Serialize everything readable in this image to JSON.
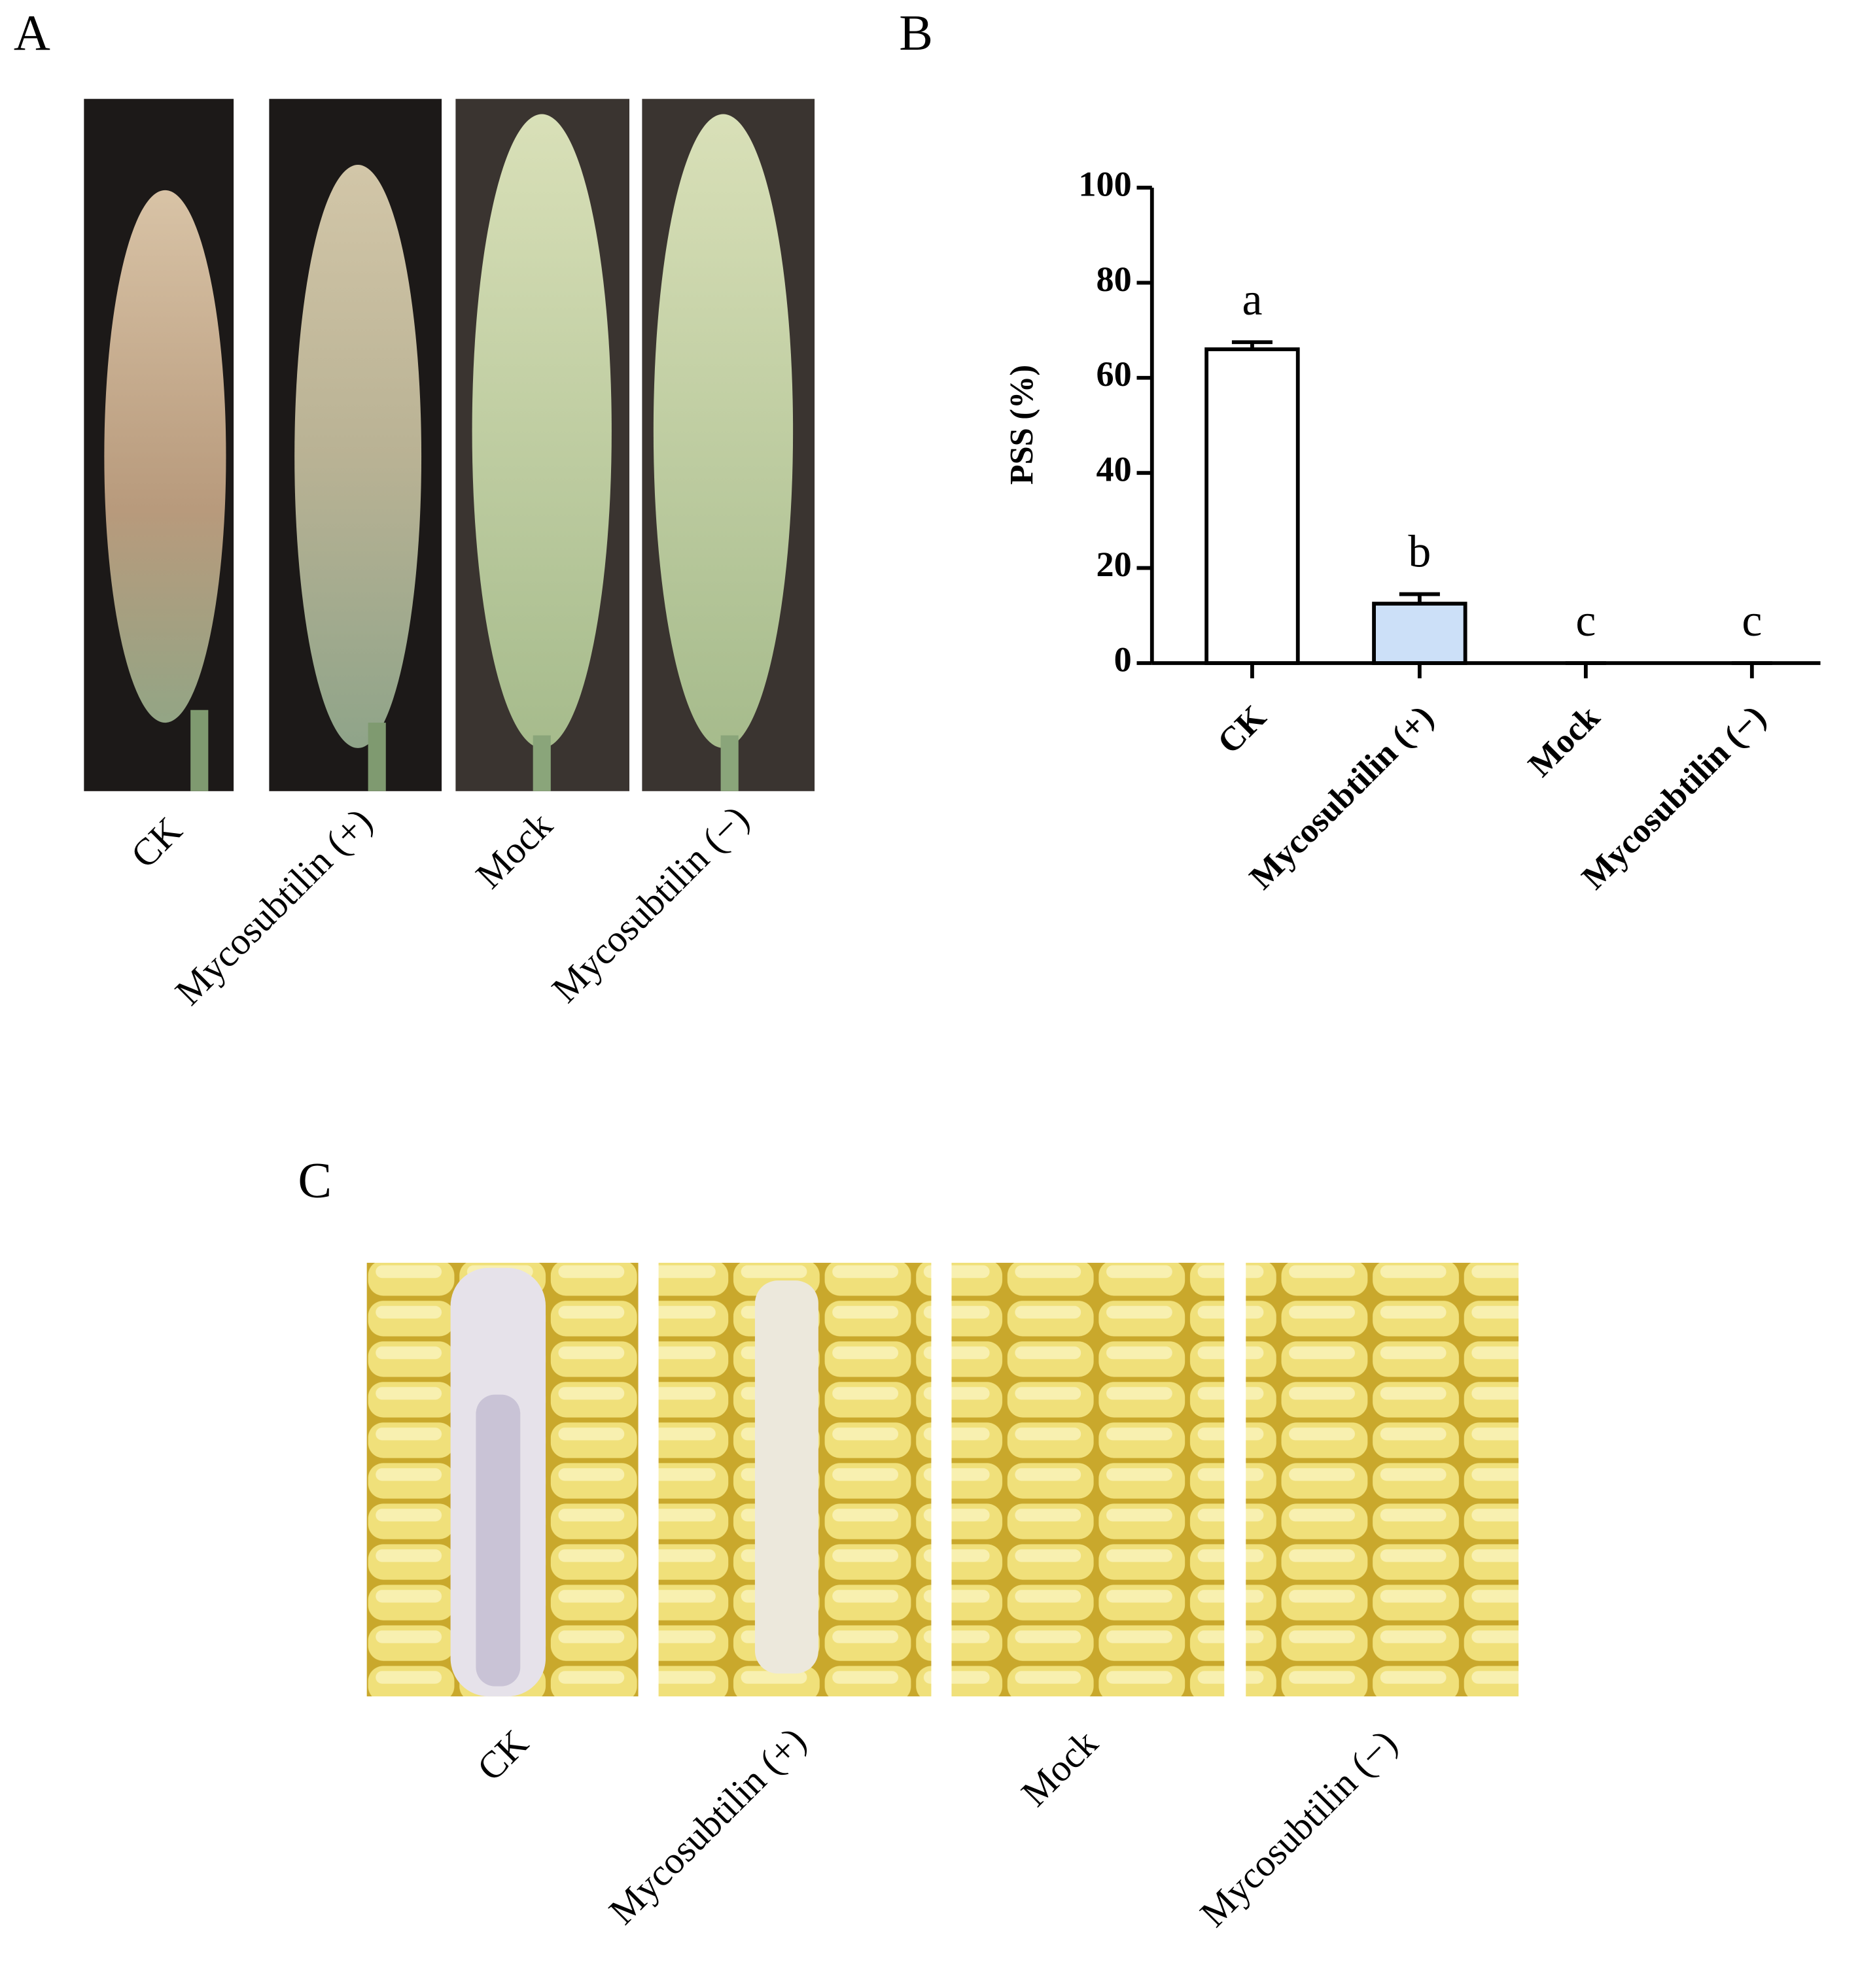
{
  "figure": {
    "panel_labels": [
      "A",
      "B",
      "C"
    ],
    "panel_a_labels": [
      "CK",
      "Mycosubtilin (+)",
      "Mock",
      "Mycosubtilin (−)"
    ],
    "panel_c_labels": [
      "CK",
      "Mycosubtilin (+)",
      "Mock",
      "Mycosubtilin (−)"
    ]
  },
  "chart_data": {
    "type": "bar",
    "ylabel": "PSS (%)",
    "categories": [
      "CK",
      "Mycosubtilin (+)",
      "Mock",
      "Mycosubtilin (−)"
    ],
    "values": [
      66,
      12.5,
      0,
      0
    ],
    "errors": [
      1.5,
      2,
      0,
      0
    ],
    "colors": [
      "#ffffff",
      "#cce0f8",
      "#ffffff",
      "#ffffff"
    ],
    "significance_letters": [
      "a",
      "b",
      "c",
      "c"
    ],
    "ylim": [
      0,
      100
    ],
    "yticks": [
      0,
      20,
      40,
      60,
      80,
      100
    ]
  }
}
